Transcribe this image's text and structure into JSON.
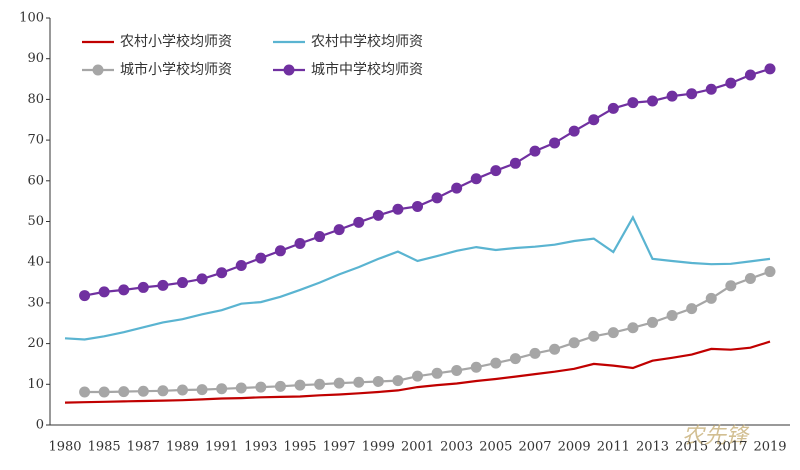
{
  "chart_data": {
    "type": "line",
    "categories": [
      "1980",
      null,
      "1985",
      null,
      "1987",
      null,
      "1989",
      null,
      "1991",
      null,
      "1993",
      null,
      "1995",
      null,
      "1997",
      null,
      "1999",
      null,
      "2001",
      null,
      "2003",
      null,
      "2005",
      null,
      "2007",
      null,
      "2009",
      null,
      "2011",
      null,
      "2013",
      null,
      "2015",
      null,
      "2017",
      null,
      "2019"
    ],
    "series": [
      {
        "name": "农村小学校均师资",
        "color": "#c00000",
        "marker": false,
        "values": [
          5.5,
          5.6,
          5.7,
          5.8,
          5.9,
          6.0,
          6.1,
          6.3,
          6.5,
          6.6,
          6.8,
          6.9,
          7.0,
          7.3,
          7.5,
          7.8,
          8.1,
          8.5,
          9.3,
          9.8,
          10.2,
          10.8,
          11.3,
          11.9,
          12.5,
          13.1,
          13.8,
          15.0,
          14.6,
          14.0,
          15.8,
          16.5,
          17.3,
          18.7,
          18.5,
          19.0,
          20.5
        ]
      },
      {
        "name": "农村中学校均师资",
        "color": "#5ab4d1",
        "marker": false,
        "values": [
          21.3,
          21.0,
          21.8,
          22.8,
          24.0,
          25.2,
          26.0,
          27.2,
          28.2,
          29.8,
          30.2,
          31.5,
          33.2,
          35.0,
          37.0,
          38.8,
          40.8,
          42.6,
          40.3,
          41.5,
          42.8,
          43.7,
          43.0,
          43.5,
          43.8,
          44.3,
          45.2,
          45.8,
          42.5,
          51.0,
          40.8,
          40.3,
          39.8,
          39.5,
          39.6,
          40.2,
          40.8
        ]
      },
      {
        "name": "城市小学校均师资",
        "color": "#a6a6a6",
        "marker": true,
        "values": [
          null,
          8.1,
          8.1,
          8.2,
          8.3,
          8.4,
          8.6,
          8.7,
          8.9,
          9.1,
          9.3,
          9.5,
          9.8,
          10.0,
          10.3,
          10.5,
          10.7,
          10.9,
          12.0,
          12.7,
          13.4,
          14.2,
          15.2,
          16.3,
          17.6,
          18.6,
          20.2,
          21.8,
          22.7,
          23.9,
          25.2,
          26.9,
          28.6,
          31.1,
          34.2,
          36.0,
          37.7
        ]
      },
      {
        "name": "城市中学校均师资",
        "color": "#7030a0",
        "marker": true,
        "values": [
          null,
          31.8,
          32.7,
          33.2,
          33.8,
          34.3,
          35.0,
          35.9,
          37.4,
          39.2,
          41.0,
          42.8,
          44.6,
          46.3,
          48.0,
          49.8,
          51.5,
          53.0,
          53.7,
          55.8,
          58.2,
          60.5,
          62.5,
          64.3,
          67.3,
          69.3,
          72.2,
          75.0,
          77.8,
          79.2,
          79.6,
          80.8,
          81.4,
          82.5,
          84.0,
          86.0,
          87.5
        ]
      }
    ],
    "ylim": [
      0,
      100
    ],
    "yticks": [
      0,
      10,
      20,
      30,
      40,
      50,
      60,
      70,
      80,
      90,
      100
    ],
    "legend": "top-left",
    "grid": false,
    "watermark": "农先锋"
  }
}
